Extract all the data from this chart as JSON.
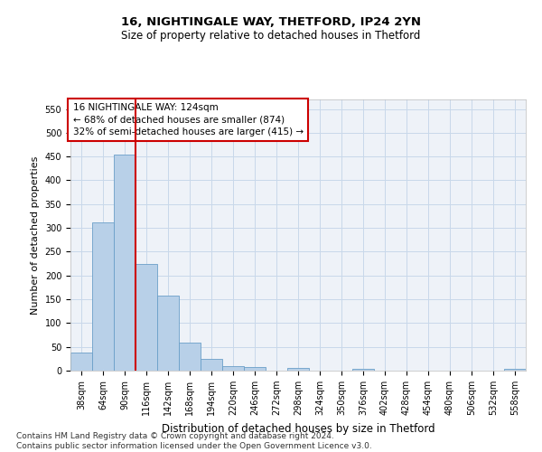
{
  "title1": "16, NIGHTINGALE WAY, THETFORD, IP24 2YN",
  "title2": "Size of property relative to detached houses in Thetford",
  "xlabel": "Distribution of detached houses by size in Thetford",
  "ylabel": "Number of detached properties",
  "footnote": "Contains HM Land Registry data © Crown copyright and database right 2024.\nContains public sector information licensed under the Open Government Licence v3.0.",
  "bins": [
    "38sqm",
    "64sqm",
    "90sqm",
    "116sqm",
    "142sqm",
    "168sqm",
    "194sqm",
    "220sqm",
    "246sqm",
    "272sqm",
    "298sqm",
    "324sqm",
    "350sqm",
    "376sqm",
    "402sqm",
    "428sqm",
    "454sqm",
    "480sqm",
    "506sqm",
    "532sqm",
    "558sqm"
  ],
  "values": [
    38,
    311,
    455,
    225,
    158,
    58,
    25,
    10,
    7,
    0,
    5,
    0,
    0,
    3,
    0,
    0,
    0,
    0,
    0,
    0,
    4
  ],
  "bar_color": "#b8d0e8",
  "bar_edge_color": "#6a9fc8",
  "grid_color": "#c8d8ea",
  "vline_color": "#cc0000",
  "vline_pos": 2.5,
  "ylim": [
    0,
    570
  ],
  "yticks": [
    0,
    50,
    100,
    150,
    200,
    250,
    300,
    350,
    400,
    450,
    500,
    550
  ],
  "annotation_line1": "16 NIGHTINGALE WAY: 124sqm",
  "annotation_line2": "← 68% of detached houses are smaller (874)",
  "annotation_line3": "32% of semi-detached houses are larger (415) →",
  "title1_fontsize": 9.5,
  "title2_fontsize": 8.5,
  "xlabel_fontsize": 8.5,
  "ylabel_fontsize": 8,
  "tick_fontsize": 7,
  "annotation_fontsize": 7.5,
  "footnote_fontsize": 6.5,
  "bg_color": "#eef2f8"
}
